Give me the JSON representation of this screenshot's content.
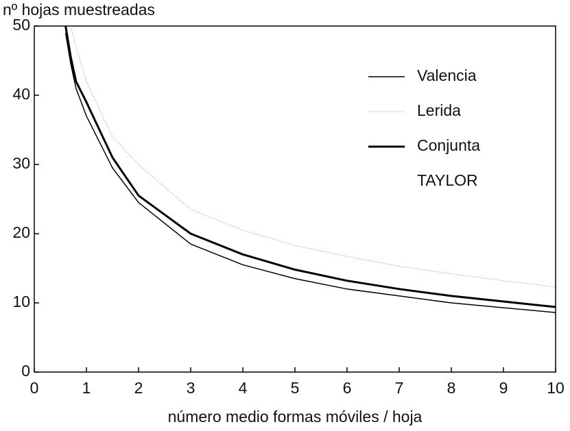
{
  "chart_data": {
    "type": "line",
    "y_label": "nº hojas muestreadas",
    "x_label": "número medio formas móviles / hoja",
    "annotation": "TAYLOR",
    "x": [
      0.6,
      0.7,
      0.8,
      1,
      1.5,
      2,
      3,
      4,
      5,
      6,
      7,
      8,
      9,
      10
    ],
    "series": [
      {
        "name": "Valencia",
        "color": "#000000",
        "line_width": 1.5,
        "dash": "none",
        "values": [
          49,
          44.5,
          41,
          37,
          29.5,
          24.5,
          18.5,
          15.5,
          13.5,
          12,
          11,
          10,
          9.3,
          8.6
        ]
      },
      {
        "name": "Lerida",
        "color": "#888888",
        "line_width": 1,
        "dash": "1 2",
        "values": [
          null,
          50,
          47,
          42,
          34,
          30,
          23.5,
          20.5,
          18.3,
          16.7,
          15.3,
          14.2,
          13.2,
          12.3
        ]
      },
      {
        "name": "Conjunta",
        "color": "#000000",
        "line_width": 3,
        "dash": "none",
        "values": [
          50,
          45.5,
          42,
          39,
          31,
          25.5,
          20,
          17,
          14.8,
          13.2,
          12,
          11,
          10.2,
          9.4
        ]
      }
    ],
    "xlim": [
      0,
      10
    ],
    "xticks": [
      0,
      1,
      2,
      3,
      4,
      5,
      6,
      7,
      8,
      9,
      10
    ],
    "ylim": [
      0,
      50
    ],
    "yticks": [
      0,
      10,
      20,
      30,
      40,
      50
    ],
    "grid": false
  }
}
